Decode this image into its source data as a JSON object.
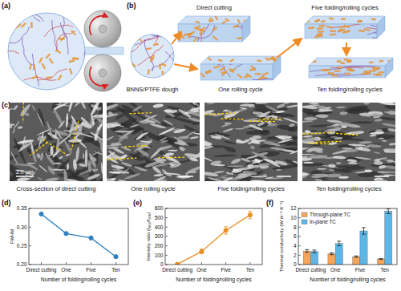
{
  "figure": {
    "panel_labels": [
      "(a)",
      "(b)",
      "(c)",
      "(d)",
      "(e)",
      "(f)"
    ],
    "schematic": {
      "dough": "BNNS/PTFE dough",
      "steps": [
        "Direct cutting",
        "One rolling cycle",
        "Five folding/rolling cycles",
        "Ten folding/rolling cycles"
      ]
    },
    "sem": {
      "captions": [
        "Cross-section of direct cutting",
        "One rolling cycle",
        "Five folding/rolling cycles",
        "Ten folding/rolling cycles"
      ],
      "scale_bar": "2.0 μm"
    }
  },
  "chart_data": [
    {
      "type": "line",
      "categories": [
        "Direct cutting",
        "One",
        "Five",
        "Ten"
      ],
      "values": [
        0.335,
        0.283,
        0.271,
        0.221
      ],
      "color": "#2f7fc1",
      "marker": "circle",
      "x_label": "Number of folding/rolling cycles",
      "y_label": "FWHM",
      "ylim": [
        0.2,
        0.35
      ],
      "yticks": [
        {
          "value": 0.2,
          "label": "0.20"
        },
        0.25,
        {
          "value": 0.3,
          "label": "0.30"
        },
        0.35
      ]
    },
    {
      "type": "line",
      "categories": [
        "Direct cutting",
        "One",
        "Five",
        "Ten"
      ],
      "values": [
        3,
        140,
        365,
        530
      ],
      "errors": [
        4,
        25,
        40,
        40
      ],
      "color": "#e8902a",
      "marker": "circle",
      "x_label": "Number of folding/rolling cycles",
      "y_label": "Intensity ratio (I₀₀₂/I₁₀₀)",
      "ylim": [
        0,
        600
      ],
      "yticks": [
        0,
        100,
        200,
        300,
        400,
        500,
        600
      ]
    },
    {
      "type": "bar",
      "categories": [
        "Direct cutting",
        "One",
        "Five",
        "Ten"
      ],
      "series": [
        {
          "name": "Through-plane TC",
          "color": "#f5a55a",
          "values": [
            2.9,
            2.3,
            1.7,
            1.2
          ],
          "errors": [
            0.3,
            0.2,
            0.15,
            0.1
          ]
        },
        {
          "name": "In-plane TC",
          "color": "#5db6e6",
          "values": [
            2.8,
            4.5,
            7.2,
            11.4
          ],
          "errors": [
            0.3,
            0.5,
            0.7,
            0.5
          ]
        }
      ],
      "legend": "upper left",
      "x_label": "Number of folding/rolling cycles",
      "y_label": "Thermal conductivity (W m⁻¹ K⁻¹)",
      "ylim": [
        0,
        12
      ],
      "yticks": [
        0,
        2,
        4,
        6,
        8,
        10,
        12
      ]
    }
  ]
}
